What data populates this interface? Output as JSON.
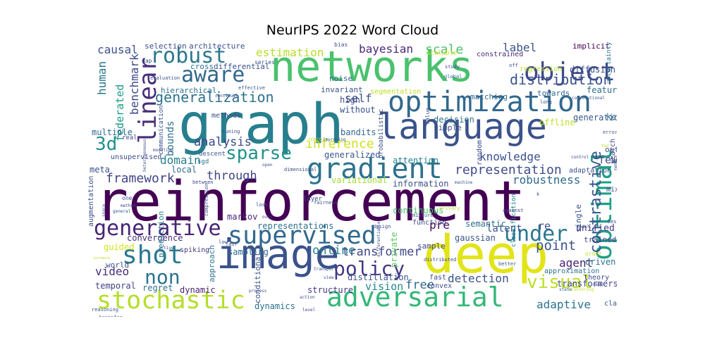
{
  "title": "NeurIPS 2022 Word Cloud",
  "words": [
    {
      "text": "reinforcement",
      "color": "#440154"
    },
    {
      "text": "graph",
      "color": "#277f8e"
    },
    {
      "text": "deep",
      "color": "#e2e419"
    },
    {
      "text": "networks",
      "color": "#4ac16d"
    },
    {
      "text": "language",
      "color": "#3b528b"
    },
    {
      "text": "image",
      "color": "#3b528b"
    },
    {
      "text": "optimization",
      "color": "#31688e"
    },
    {
      "text": "adversarial",
      "color": "#35b779"
    },
    {
      "text": "stochastic",
      "color": "#b5de2b"
    },
    {
      "text": "gradient",
      "color": "#2c728e"
    },
    {
      "text": "supervised",
      "color": "#31688e"
    },
    {
      "text": "optimal",
      "color": "#1fa088"
    },
    {
      "text": "shot",
      "color": "#2a788e"
    },
    {
      "text": "object",
      "color": "#3e4989"
    },
    {
      "text": "linear",
      "color": "#472d7b"
    },
    {
      "text": "generative",
      "color": "#482475"
    },
    {
      "text": "robust",
      "color": "#2a788e"
    },
    {
      "text": "aware",
      "color": "#31688e"
    },
    {
      "text": "policy",
      "color": "#443983"
    },
    {
      "text": "under",
      "color": "#2a788e"
    },
    {
      "text": "sparse",
      "color": "#21918c"
    },
    {
      "text": "3d",
      "color": "#21918c"
    },
    {
      "text": "non",
      "color": "#2c728e"
    },
    {
      "text": "visual",
      "color": "#bddf26"
    },
    {
      "text": "contrastive",
      "color": "#39558c"
    },
    {
      "text": "generalization",
      "color": "#2c728e"
    },
    {
      "text": "distribution",
      "color": "#3b528b"
    },
    {
      "text": "inference",
      "color": "#d0e11c"
    },
    {
      "text": "representation",
      "color": "#3e4c8a"
    },
    {
      "text": "analysis",
      "color": "#3e4989"
    },
    {
      "text": "framework",
      "color": "#414487"
    },
    {
      "text": "through",
      "color": "#404688"
    },
    {
      "text": "point",
      "color": "#3b528b"
    },
    {
      "text": "online",
      "color": "#25848e"
    },
    {
      "text": "transformer",
      "color": "#404688"
    },
    {
      "text": "estimation",
      "color": "#b8de29"
    },
    {
      "text": "bayesian",
      "color": "#482878"
    },
    {
      "text": "scale",
      "color": "#4ac16d"
    },
    {
      "text": "label",
      "color": "#3b528b"
    },
    {
      "text": "causal",
      "color": "#3b528b"
    },
    {
      "text": "human",
      "color": "#2a788e"
    },
    {
      "text": "federated",
      "color": "#1e9c89"
    },
    {
      "text": "benchmark",
      "color": "#3e4989"
    },
    {
      "text": "video",
      "color": "#472d7b"
    },
    {
      "text": "detection",
      "color": "#3b528b"
    },
    {
      "text": "knowledge",
      "color": "#3b528b"
    },
    {
      "text": "robustness",
      "color": "#306a8e"
    },
    {
      "text": "adaptive",
      "color": "#2c728e"
    },
    {
      "text": "agent",
      "color": "#482475"
    },
    {
      "text": "domain",
      "color": "#277f8e"
    },
    {
      "text": "bounds",
      "color": "#2c728e"
    },
    {
      "text": "self",
      "color": "#3b528b"
    },
    {
      "text": "pre",
      "color": "#440154"
    },
    {
      "text": "vision",
      "color": "#23888e"
    },
    {
      "text": "free",
      "color": "#31688e"
    },
    {
      "text": "latent",
      "color": "#3b528b"
    },
    {
      "text": "few",
      "color": "#3e4989"
    },
    {
      "text": "re",
      "color": "#3e4c8a"
    },
    {
      "text": "unified",
      "color": "#453781"
    },
    {
      "text": "hierarchical",
      "color": "#2d708e"
    },
    {
      "text": "convergence",
      "color": "#472d7b"
    },
    {
      "text": "sampling",
      "color": "#31688e"
    },
    {
      "text": "semantic",
      "color": "#2d708e"
    },
    {
      "text": "gaussian",
      "color": "#39558c"
    },
    {
      "text": "markov",
      "color": "#482878"
    },
    {
      "text": "representations",
      "color": "#2c728e"
    },
    {
      "text": "variational",
      "color": "#a0da39"
    },
    {
      "text": "information",
      "color": "#3b528b"
    },
    {
      "text": "generalized",
      "color": "#39568c"
    },
    {
      "text": "attention",
      "color": "#26828e"
    },
    {
      "text": "local",
      "color": "#306a8e"
    },
    {
      "text": "multiple",
      "color": "#31688e"
    },
    {
      "text": "bandits",
      "color": "#31688e"
    },
    {
      "text": "distillation",
      "color": "#3b528b"
    },
    {
      "text": "structure",
      "color": "#453781"
    },
    {
      "text": "temporal",
      "color": "#414487"
    },
    {
      "text": "regret",
      "color": "#2e6e8e"
    },
    {
      "text": "dynamic",
      "color": "#481f70"
    },
    {
      "text": "dynamics",
      "color": "#2c728e"
    },
    {
      "text": "guided",
      "color": "#d2e21b"
    },
    {
      "text": "fast",
      "color": "#3e4c8a"
    },
    {
      "text": "convex",
      "color": "#3b528b"
    },
    {
      "text": "decision",
      "color": "#2c728e"
    },
    {
      "text": "generation",
      "color": "#39568c"
    },
    {
      "text": "kernel",
      "color": "#2c728e"
    },
    {
      "text": "offline",
      "color": "#c0df25"
    },
    {
      "text": "feature",
      "color": "#2d708e"
    },
    {
      "text": "diffusion",
      "color": "#3b528b"
    },
    {
      "text": "regression",
      "color": "#bddf26"
    },
    {
      "text": "implicit",
      "color": "#440154"
    },
    {
      "text": "constrained",
      "color": "#482878"
    },
    {
      "text": "uncertainty",
      "color": "#2c728e"
    },
    {
      "text": "towards",
      "color": "#31688e"
    },
    {
      "text": "search",
      "color": "#3e4989"
    },
    {
      "text": "out",
      "color": "#3e4c8a"
    },
    {
      "text": "meta",
      "color": "#3b528b"
    },
    {
      "text": "unsupervised",
      "color": "#3e4c8a"
    },
    {
      "text": "sgd",
      "color": "#2c728e"
    },
    {
      "text": "approach",
      "color": "#2c728e"
    },
    {
      "text": "continuous",
      "color": "#4ac16d"
    },
    {
      "text": "private",
      "color": "#5ec962"
    },
    {
      "text": "single",
      "color": "#3b528b"
    },
    {
      "text": "mixed",
      "color": "#3e4c8a"
    },
    {
      "text": "trained",
      "color": "#414487"
    },
    {
      "text": "spiking",
      "color": "#443983"
    },
    {
      "text": "transformers",
      "color": "#404688"
    },
    {
      "text": "approximation",
      "color": "#2c728e"
    },
    {
      "text": "theory",
      "color": "#3e4989"
    },
    {
      "text": "driven",
      "color": "#2c728e"
    },
    {
      "text": "conditional",
      "color": "#3b528b"
    },
    {
      "text": "prediction",
      "color": "#26828e"
    },
    {
      "text": "methods",
      "color": "#3e4c8a"
    },
    {
      "text": "without",
      "color": "#3b528b"
    },
    {
      "text": "high",
      "color": "#3e4989"
    },
    {
      "text": "invariant",
      "color": "#3b528b"
    },
    {
      "text": "cross",
      "color": "#2c728e"
    },
    {
      "text": "differential",
      "color": "#3b528b"
    },
    {
      "text": "architecture",
      "color": "#3b528b"
    },
    {
      "text": "selection",
      "color": "#3e4c8a"
    },
    {
      "text": "noise",
      "color": "#31688e"
    },
    {
      "text": "simple",
      "color": "#3b528b"
    },
    {
      "text": "sample",
      "color": "#3e4989"
    },
    {
      "text": "world",
      "color": "#3b528b"
    },
    {
      "text": "augmentation",
      "color": "#3e4989"
    },
    {
      "text": "communication",
      "color": "#3b528b"
    },
    {
      "text": "function",
      "color": "#3e4c8a"
    },
    {
      "text": "class",
      "color": "#3b528b"
    },
    {
      "text": "classification",
      "color": "#26828e"
    },
    {
      "text": "segmentation",
      "color": "#bddf26"
    },
    {
      "text": "matching",
      "color": "#31688e"
    },
    {
      "text": "adaptation",
      "color": "#3b528b"
    },
    {
      "text": "layer",
      "color": "#3b528b"
    },
    {
      "text": "descent",
      "color": "#39558c"
    },
    {
      "text": "probabilistic",
      "color": "#3b528b"
    },
    {
      "text": "scalable",
      "color": "#d2e21b"
    },
    {
      "text": "series",
      "color": "#3b528b"
    },
    {
      "text": "bias",
      "color": "#3e4c8a"
    },
    {
      "text": "gap",
      "color": "#3e4989"
    },
    {
      "text": "evaluation",
      "color": "#3b528b"
    },
    {
      "text": "effective",
      "color": "#3b528b"
    },
    {
      "text": "continual",
      "color": "#3e4c8a"
    },
    {
      "text": "global",
      "color": "#31688e"
    },
    {
      "text": "study",
      "color": "#3b528b"
    },
    {
      "text": "value",
      "color": "#3b528b"
    },
    {
      "text": "random",
      "color": "#3e4c8a"
    },
    {
      "text": "long",
      "color": "#3e4989"
    },
    {
      "text": "convolutional",
      "color": "#3b528b"
    },
    {
      "text": "off",
      "color": "#3e4c8a"
    },
    {
      "text": "error",
      "color": "#3b528b"
    },
    {
      "text": "control",
      "color": "#3e4989"
    },
    {
      "text": "memory",
      "color": "#3b528b"
    },
    {
      "text": "real",
      "color": "#3e4c8a"
    },
    {
      "text": "heterogeneous",
      "color": "#3b528b"
    },
    {
      "text": "tuning",
      "color": "#3e4c8a"
    },
    {
      "text": "zero",
      "color": "#bddf26"
    },
    {
      "text": "improving",
      "color": "#3b528b"
    },
    {
      "text": "modeling",
      "color": "#3e4989"
    },
    {
      "text": "open",
      "color": "#3b528b"
    },
    {
      "text": "dimensional",
      "color": "#3e4c8a"
    },
    {
      "text": "machine",
      "color": "#3b528b"
    },
    {
      "text": "between",
      "color": "#3e4989"
    },
    {
      "text": "compression",
      "color": "#3b528b"
    },
    {
      "text": "fairness",
      "color": "#3e4c8a"
    },
    {
      "text": "loss",
      "color": "#3b528b"
    },
    {
      "text": "over",
      "color": "#3e4c8a"
    },
    {
      "text": "mixture",
      "color": "#3b528b"
    },
    {
      "text": "privacy",
      "color": "#bddf26"
    },
    {
      "text": "against",
      "color": "#3e4989"
    },
    {
      "text": "best",
      "color": "#3b528b"
    },
    {
      "text": "model",
      "color": "#3e4c8a"
    },
    {
      "text": "order",
      "color": "#bddf26"
    },
    {
      "text": "transfer",
      "color": "#3b528b"
    },
    {
      "text": "active",
      "color": "#3e4989"
    },
    {
      "text": "fair",
      "color": "#3b528b"
    },
    {
      "text": "low",
      "color": "#3e4c8a"
    },
    {
      "text": "reasoning",
      "color": "#3b528b"
    },
    {
      "text": "design",
      "color": "#3e4c8a"
    },
    {
      "text": "differentiable",
      "color": "#3b528b"
    },
    {
      "text": "distributed",
      "color": "#3e4989"
    },
    {
      "text": "better",
      "color": "#3b528b"
    },
    {
      "text": "process",
      "color": "#3e4c8a"
    },
    {
      "text": "action",
      "color": "#3b528b"
    },
    {
      "text": "level",
      "color": "#3e4989"
    },
    {
      "text": "transport",
      "color": "#3b528b"
    },
    {
      "text": "view",
      "color": "#3e4c8a"
    },
    {
      "text": "state",
      "color": "#3b528b"
    },
    {
      "text": "clustering",
      "color": "#bddf26"
    },
    {
      "text": "rank",
      "color": "#3e4c8a"
    },
    {
      "text": "general",
      "color": "#3b528b"
    },
    {
      "text": "one",
      "color": "#3b528b"
    },
    {
      "text": "method",
      "color": "#3e4989"
    },
    {
      "text": "space",
      "color": "#3b528b"
    },
    {
      "text": "instance",
      "color": "#bddf26"
    },
    {
      "text": "two",
      "color": "#bddf26"
    },
    {
      "text": "k",
      "color": "#3b528b"
    }
  ]
}
